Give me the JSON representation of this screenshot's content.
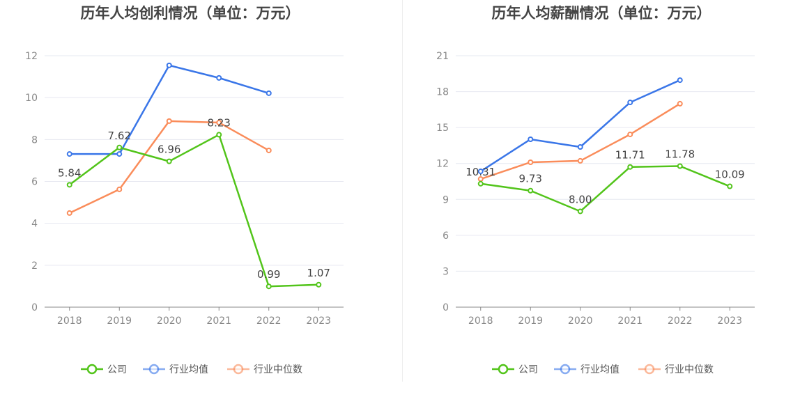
{
  "chart_data": [
    {
      "type": "line",
      "title": "历年人均创利情况（单位：万元）",
      "categories": [
        "2018",
        "2019",
        "2020",
        "2021",
        "2022",
        "2023"
      ],
      "ylim": [
        0,
        12
      ],
      "yticks": [
        0,
        2,
        4,
        6,
        8,
        10,
        12
      ],
      "grid": true,
      "legend": "bottom",
      "series": [
        {
          "name": "公司",
          "color": "#52c41a",
          "values": [
            5.84,
            7.62,
            6.96,
            8.23,
            0.99,
            1.07
          ],
          "labels": true
        },
        {
          "name": "行业均值",
          "color": "#3a76e8",
          "values": [
            7.31,
            7.31,
            11.54,
            10.94,
            10.21,
            null
          ]
        },
        {
          "name": "行业中位数",
          "color": "#fa8c5a",
          "values": [
            4.49,
            5.62,
            8.88,
            8.81,
            7.48,
            null
          ]
        }
      ]
    },
    {
      "type": "line",
      "title": "历年人均薪酬情况（单位：万元）",
      "categories": [
        "2018",
        "2019",
        "2020",
        "2021",
        "2022",
        "2023"
      ],
      "ylim": [
        0,
        21
      ],
      "yticks": [
        0,
        3,
        6,
        9,
        12,
        15,
        18,
        21
      ],
      "grid": true,
      "legend": "bottom",
      "series": [
        {
          "name": "公司",
          "color": "#52c41a",
          "values": [
            10.31,
            9.73,
            8.0,
            11.71,
            11.78,
            10.09
          ],
          "labels": true
        },
        {
          "name": "行业均值",
          "color": "#3a76e8",
          "values": [
            11.34,
            14.02,
            13.38,
            17.1,
            18.96,
            null
          ]
        },
        {
          "name": "行业中位数",
          "color": "#fa8c5a",
          "values": [
            10.7,
            12.1,
            12.22,
            14.43,
            16.99,
            null
          ]
        }
      ]
    }
  ]
}
